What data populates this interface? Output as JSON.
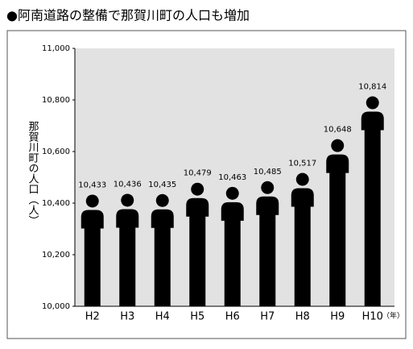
{
  "chart_data": {
    "type": "bar",
    "title": "●阿南道路の整備で那賀川町の人口も増加",
    "y_label": "那賀川町の人口（人）",
    "x_unit": "（年）",
    "categories": [
      "H2",
      "H3",
      "H4",
      "H5",
      "H6",
      "H7",
      "H8",
      "H9",
      "H10"
    ],
    "values": [
      10433,
      10436,
      10435,
      10479,
      10463,
      10485,
      10517,
      10648,
      10814
    ],
    "value_labels": [
      "10,433",
      "10,436",
      "10,435",
      "10,479",
      "10,463",
      "10,485",
      "10,517",
      "10,648",
      "10,814"
    ],
    "color": "#000000",
    "ylim": [
      10000,
      11000
    ],
    "yticks": [
      {
        "value": 10000,
        "label": "10,000"
      },
      {
        "value": 10200,
        "label": "10,200"
      },
      {
        "value": 10400,
        "label": "10,400"
      },
      {
        "value": 10600,
        "label": "10,600"
      },
      {
        "value": 10800,
        "label": "10,800"
      },
      {
        "value": 11000,
        "label": "11,000"
      }
    ],
    "grid": false
  }
}
